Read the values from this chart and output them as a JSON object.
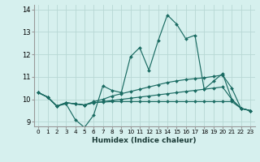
{
  "xlabel": "Humidex (Indice chaleur)",
  "ylabel": "",
  "background_color": "#d6f0ee",
  "grid_color": "#b8d8d4",
  "line_color": "#1a6b62",
  "xlim": [
    -0.5,
    23.5
  ],
  "ylim": [
    8.8,
    14.2
  ],
  "yticks": [
    9,
    10,
    11,
    12,
    13,
    14
  ],
  "xticks": [
    0,
    1,
    2,
    3,
    4,
    5,
    6,
    7,
    8,
    9,
    10,
    11,
    12,
    13,
    14,
    15,
    16,
    17,
    18,
    19,
    20,
    21,
    22,
    23
  ],
  "series": [
    [
      10.3,
      10.1,
      9.7,
      9.8,
      9.1,
      8.75,
      9.3,
      10.6,
      10.4,
      10.3,
      11.9,
      12.3,
      11.3,
      12.6,
      13.75,
      13.35,
      12.7,
      12.85,
      10.45,
      10.8,
      11.15,
      10.0,
      9.6,
      9.5
    ],
    [
      10.3,
      10.1,
      9.7,
      9.85,
      9.8,
      9.75,
      9.9,
      10.0,
      10.15,
      10.25,
      10.35,
      10.45,
      10.55,
      10.65,
      10.75,
      10.82,
      10.88,
      10.92,
      10.96,
      11.02,
      11.08,
      10.5,
      9.6,
      9.5
    ],
    [
      10.3,
      10.1,
      9.7,
      9.85,
      9.8,
      9.75,
      9.85,
      9.9,
      9.95,
      10.0,
      10.05,
      10.1,
      10.15,
      10.2,
      10.25,
      10.3,
      10.35,
      10.4,
      10.45,
      10.5,
      10.55,
      10.0,
      9.6,
      9.5
    ],
    [
      10.3,
      10.1,
      9.7,
      9.85,
      9.8,
      9.75,
      9.85,
      9.88,
      9.9,
      9.9,
      9.9,
      9.9,
      9.9,
      9.9,
      9.9,
      9.9,
      9.9,
      9.9,
      9.9,
      9.9,
      9.9,
      9.9,
      9.6,
      9.5
    ]
  ]
}
